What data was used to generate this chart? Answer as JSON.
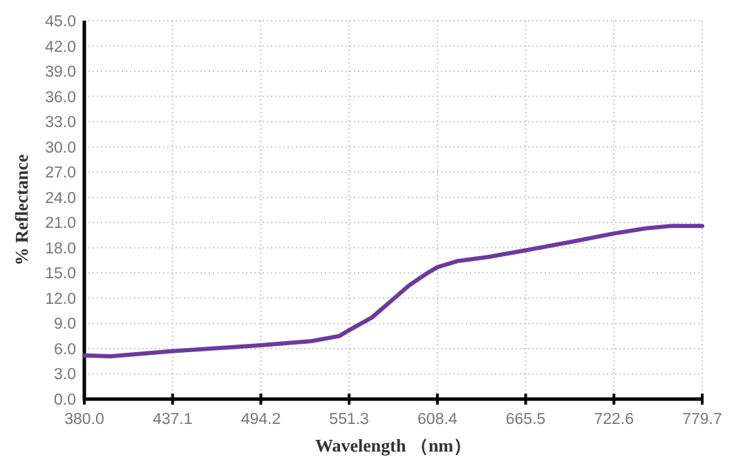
{
  "chart_data": {
    "type": "line",
    "xlabel": "Wavelength （nm）",
    "ylabel": "% Reflectance",
    "series": [
      {
        "color": "#6b3a9c",
        "x": [
          380,
          397,
          437.1,
          494.2,
          527,
          545,
          551.3,
          566,
          578,
          590,
          602,
          608.4,
          621,
          641,
          665.5,
          695,
          722.6,
          743,
          760,
          779.7
        ],
        "values": [
          5.2,
          5.1,
          5.7,
          6.4,
          6.9,
          7.5,
          8.2,
          9.7,
          11.6,
          13.5,
          15.0,
          15.7,
          16.4,
          16.9,
          17.7,
          18.7,
          19.7,
          20.3,
          20.6,
          20.6
        ]
      }
    ],
    "xlim": [
      380,
      779.7
    ],
    "ylim": [
      0,
      45
    ],
    "xticks": [
      {
        "value": 380,
        "label": "380.0"
      },
      {
        "value": 437.1,
        "label": "437.1"
      },
      {
        "value": 494.2,
        "label": "494.2"
      },
      {
        "value": 551.3,
        "label": "551.3"
      },
      {
        "value": 608.4,
        "label": "608.4"
      },
      {
        "value": 665.5,
        "label": "665.5"
      },
      {
        "value": 722.6,
        "label": "722.6"
      },
      {
        "value": 779.7,
        "label": "779.7"
      }
    ],
    "yticks": [
      {
        "value": 0,
        "label": "0.0"
      },
      {
        "value": 3,
        "label": "3.0"
      },
      {
        "value": 6,
        "label": "6.0"
      },
      {
        "value": 9,
        "label": "9.0"
      },
      {
        "value": 12,
        "label": "12.0"
      },
      {
        "value": 15,
        "label": "15.0"
      },
      {
        "value": 18,
        "label": "18.0"
      },
      {
        "value": 21,
        "label": "21.0"
      },
      {
        "value": 24,
        "label": "24.0"
      },
      {
        "value": 27,
        "label": "27.0"
      },
      {
        "value": 30,
        "label": "30.0"
      },
      {
        "value": 33,
        "label": "33.0"
      },
      {
        "value": 36,
        "label": "36.0"
      },
      {
        "value": 39,
        "label": "39.0"
      },
      {
        "value": 42,
        "label": "42.0"
      },
      {
        "value": 45,
        "label": "45.0"
      }
    ],
    "grid": true,
    "marker": "none",
    "line_style": "solid"
  }
}
